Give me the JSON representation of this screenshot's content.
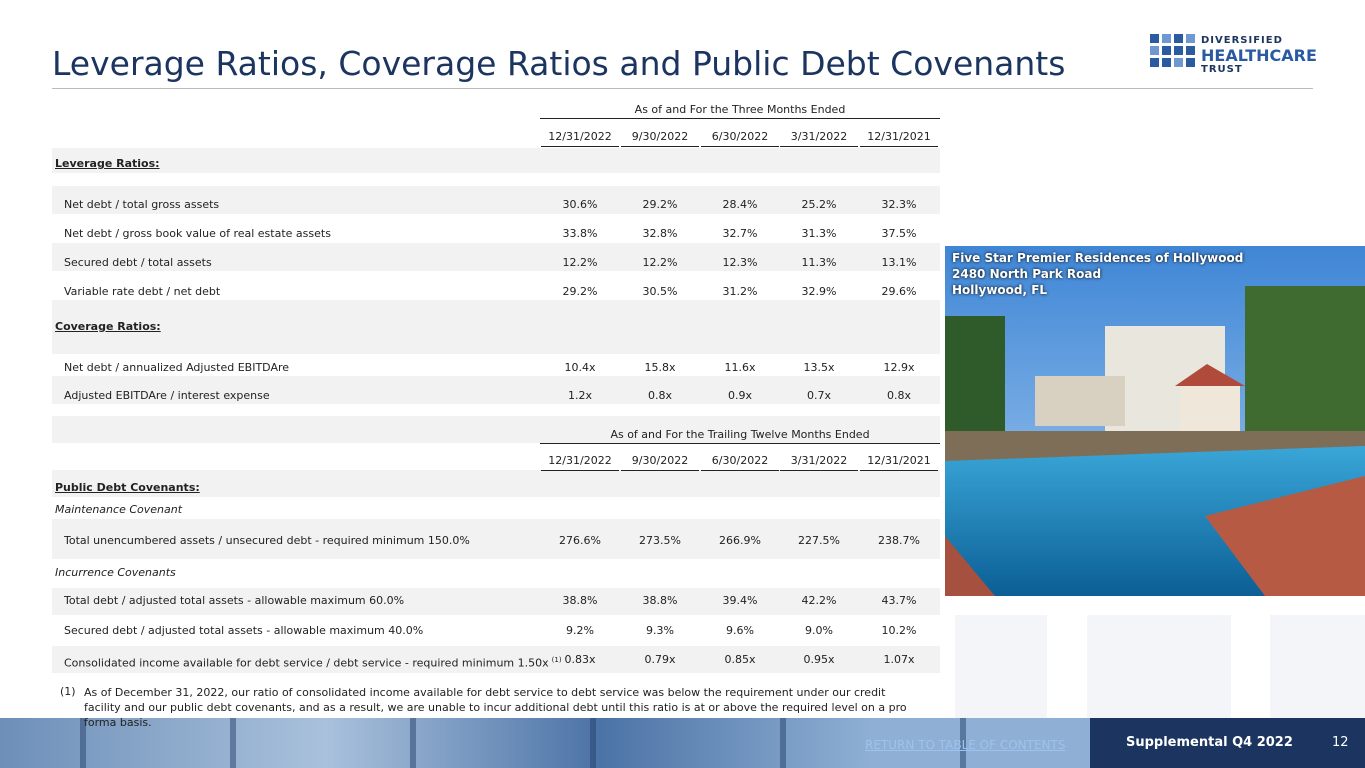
{
  "title": "Leverage Ratios, Coverage Ratios and Public Debt Covenants",
  "logo": {
    "line1": "DIVERSIFIED",
    "line2": "HEALTHCARE",
    "line3": "TRUST"
  },
  "tables": [
    {
      "period_header": "As of and For the Three Months Ended",
      "columns": [
        "12/31/2022",
        "9/30/2022",
        "6/30/2022",
        "3/31/2022",
        "12/31/2021"
      ],
      "groups": [
        {
          "heading": "Leverage Ratios:",
          "rows": [
            {
              "label": "Net debt / total gross assets",
              "values": [
                "30.6%",
                "29.2%",
                "28.4%",
                "25.2%",
                "32.3%"
              ]
            },
            {
              "label": "Net debt / gross book value of real estate assets",
              "values": [
                "33.8%",
                "32.8%",
                "32.7%",
                "31.3%",
                "37.5%"
              ]
            },
            {
              "label": "Secured debt / total assets",
              "values": [
                "12.2%",
                "12.2%",
                "12.3%",
                "11.3%",
                "13.1%"
              ]
            },
            {
              "label": "Variable rate debt / net debt",
              "values": [
                "29.2%",
                "30.5%",
                "31.2%",
                "32.9%",
                "29.6%"
              ]
            }
          ]
        },
        {
          "heading": "Coverage Ratios:",
          "rows": [
            {
              "label": "Net debt / annualized Adjusted EBITDAre",
              "values": [
                "10.4x",
                "15.8x",
                "11.6x",
                "13.5x",
                "12.9x"
              ]
            },
            {
              "label": "Adjusted EBITDAre / interest expense",
              "values": [
                "1.2x",
                "0.8x",
                "0.9x",
                "0.7x",
                "0.8x"
              ]
            }
          ]
        }
      ]
    },
    {
      "period_header": "As of and For the Trailing Twelve Months Ended",
      "columns": [
        "12/31/2022",
        "9/30/2022",
        "6/30/2022",
        "3/31/2022",
        "12/31/2021"
      ],
      "heading": "Public Debt Covenants:",
      "groups": [
        {
          "title": "Maintenance Covenant",
          "rows": [
            {
              "label": "Total unencumbered assets / unsecured debt - required minimum 150.0%",
              "values": [
                "276.6%",
                "273.5%",
                "266.9%",
                "227.5%",
                "238.7%"
              ]
            }
          ]
        },
        {
          "title": "Incurrence Covenants",
          "rows": [
            {
              "label": "Total debt / adjusted total assets - allowable maximum 60.0%",
              "values": [
                "38.8%",
                "38.8%",
                "39.4%",
                "42.2%",
                "43.7%"
              ]
            },
            {
              "label": "Secured debt / adjusted total assets - allowable maximum 40.0%",
              "values": [
                "9.2%",
                "9.3%",
                "9.6%",
                "9.0%",
                "10.2%"
              ]
            },
            {
              "label": "Consolidated income available for debt service / debt service - required minimum 1.50x",
              "note": "(1)",
              "values": [
                "0.83x",
                "0.79x",
                "0.85x",
                "0.95x",
                "1.07x"
              ]
            }
          ]
        }
      ]
    }
  ],
  "footnote": {
    "marker": "(1)",
    "text": "As of December 31, 2022, our ratio of consolidated income available for debt service to debt service was below the requirement under our credit facility and our public debt covenants, and as a result, we are unable to incur additional debt until this ratio is at or above the required level on a pro forma basis."
  },
  "photo_caption": [
    "Five Star Premier Residences of Hollywood",
    "2480 North Park Road",
    "Hollywood, FL"
  ],
  "footer": {
    "link": "RETURN TO TABLE OF CONTENTS",
    "label": "Supplemental Q4 2022",
    "page": "12"
  }
}
